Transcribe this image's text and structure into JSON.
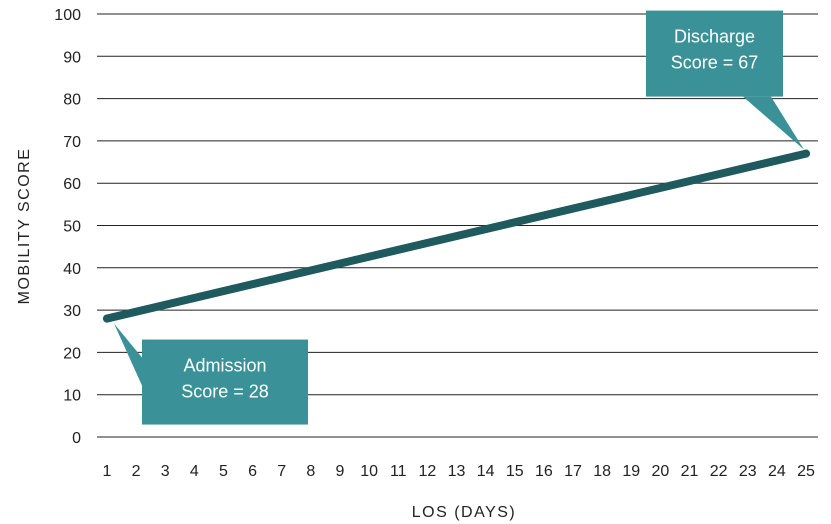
{
  "chart_data": {
    "type": "line",
    "x": [
      1,
      2,
      3,
      4,
      5,
      6,
      7,
      8,
      9,
      10,
      11,
      12,
      13,
      14,
      15,
      16,
      17,
      18,
      19,
      20,
      21,
      22,
      23,
      24,
      25
    ],
    "x_tick_labels": [
      "1",
      "2",
      "3",
      "4",
      "5",
      "6",
      "7",
      "8",
      "9",
      "10",
      "11",
      "12",
      "13",
      "14",
      "15",
      "16",
      "17",
      "18",
      "19",
      "20",
      "21",
      "22",
      "23",
      "24",
      "25"
    ],
    "y_ticks": [
      0,
      10,
      20,
      30,
      40,
      50,
      60,
      70,
      80,
      90,
      100
    ],
    "ylim": [
      0,
      100
    ],
    "xlabel": "LOS (DAYS)",
    "ylabel": "MOBILITY SCORE",
    "grid": "horizontal",
    "series": [
      {
        "points": [
          {
            "x": 1,
            "y": 28
          },
          {
            "x": 25,
            "y": 67
          }
        ],
        "color": "#1f5a5e"
      }
    ],
    "annotations": [
      {
        "lines": [
          "Admission",
          "Score = 28"
        ],
        "x": 1,
        "y": 28,
        "placement": "below-right"
      },
      {
        "lines": [
          "Discharge",
          "Score = 67"
        ],
        "x": 25,
        "y": 67,
        "placement": "above-left"
      }
    ],
    "colors": {
      "line": "#1f5a5e",
      "callout": "#3a9298",
      "grid": "#222222"
    }
  }
}
